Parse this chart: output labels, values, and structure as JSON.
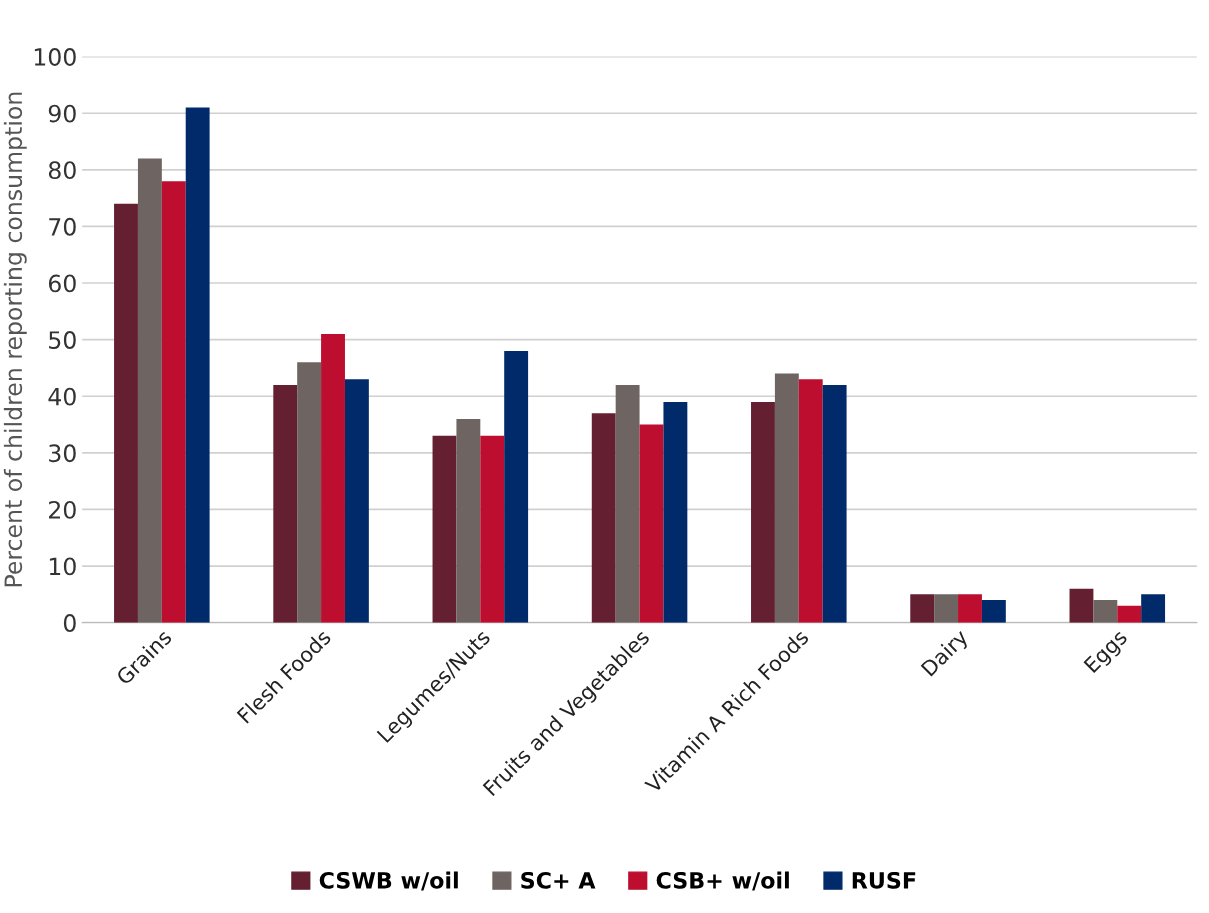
{
  "chart_data": {
    "type": "bar",
    "ylabel": "Percent of children reporting consumption",
    "categories": [
      "Grains",
      "Flesh Foods",
      "Legumes/Nuts",
      "Fruits and Vegetables",
      "Vitamin A Rich Foods",
      "Dairy",
      "Eggs"
    ],
    "series": [
      {
        "name": "CSWB w/oil",
        "color": "#641f30",
        "values": [
          74,
          42,
          33,
          37,
          39,
          5,
          6
        ]
      },
      {
        "name": "SC+ A",
        "color": "#6e6462",
        "values": [
          82,
          46,
          36,
          42,
          44,
          5,
          4
        ]
      },
      {
        "name": "CSB+ w/oil",
        "color": "#bd0e2f",
        "values": [
          78,
          51,
          33,
          35,
          43,
          5,
          3
        ]
      },
      {
        "name": "RUSF",
        "color": "#002a6a",
        "values": [
          91,
          43,
          48,
          39,
          42,
          4,
          5
        ]
      }
    ],
    "ylim": [
      0,
      100
    ],
    "yticks": [
      0,
      10,
      20,
      30,
      40,
      50,
      60,
      70,
      80,
      90,
      100
    ],
    "grid": "y",
    "legend": "bottom"
  }
}
